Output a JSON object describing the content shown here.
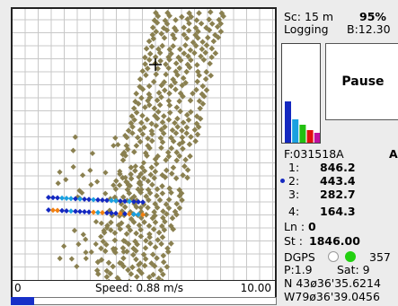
{
  "status": {
    "scale": "Sc: 15 m",
    "percent": "95%",
    "logging": "Logging",
    "battery": "B:12.30"
  },
  "pause_label": "Pause",
  "field": {
    "id": "F:031518A",
    "mode_letter": "A",
    "rows": [
      {
        "label": "1:",
        "value": "846.2",
        "active": false
      },
      {
        "label": "2:",
        "value": "443.4",
        "active": true
      },
      {
        "label": "3:",
        "value": "282.7",
        "active": false
      },
      {
        "label": "4:",
        "value": "164.3",
        "active": false
      }
    ],
    "ln_label": "Ln :",
    "ln_value": "0",
    "st_label": "St :",
    "st_value": "1846.00"
  },
  "gps": {
    "mode": "DGPS",
    "value": "357",
    "pdop": "P:1.9",
    "sat": "Sat:  9",
    "lat": "N 43ø36'35.6214",
    "lon": "W79ø36'39.0456"
  },
  "speed": {
    "min_label": "0",
    "label": "Speed: 0.88 m/s",
    "max_label": "10.00",
    "fraction": 0.088
  },
  "histogram": {
    "bars": [
      {
        "color": "#1428c0",
        "level": 0.42
      },
      {
        "color": "#1aa0e0",
        "level": 0.24
      },
      {
        "color": "#22c010",
        "level": 0.18
      },
      {
        "color": "#e01010",
        "level": 0.13
      },
      {
        "color": "#c010a0",
        "level": 0.1
      }
    ]
  },
  "colors": {
    "blue": "#1428c0",
    "light_blue": "#1aa0e0",
    "cyan": "#10d0d0",
    "green": "#22d010",
    "yellow": "#e0e010",
    "orange": "#f08010",
    "magenta": "#c0108a",
    "point": "#8a8050",
    "dgps_white": "#ffffff",
    "dgps_green": "#22d010"
  }
}
